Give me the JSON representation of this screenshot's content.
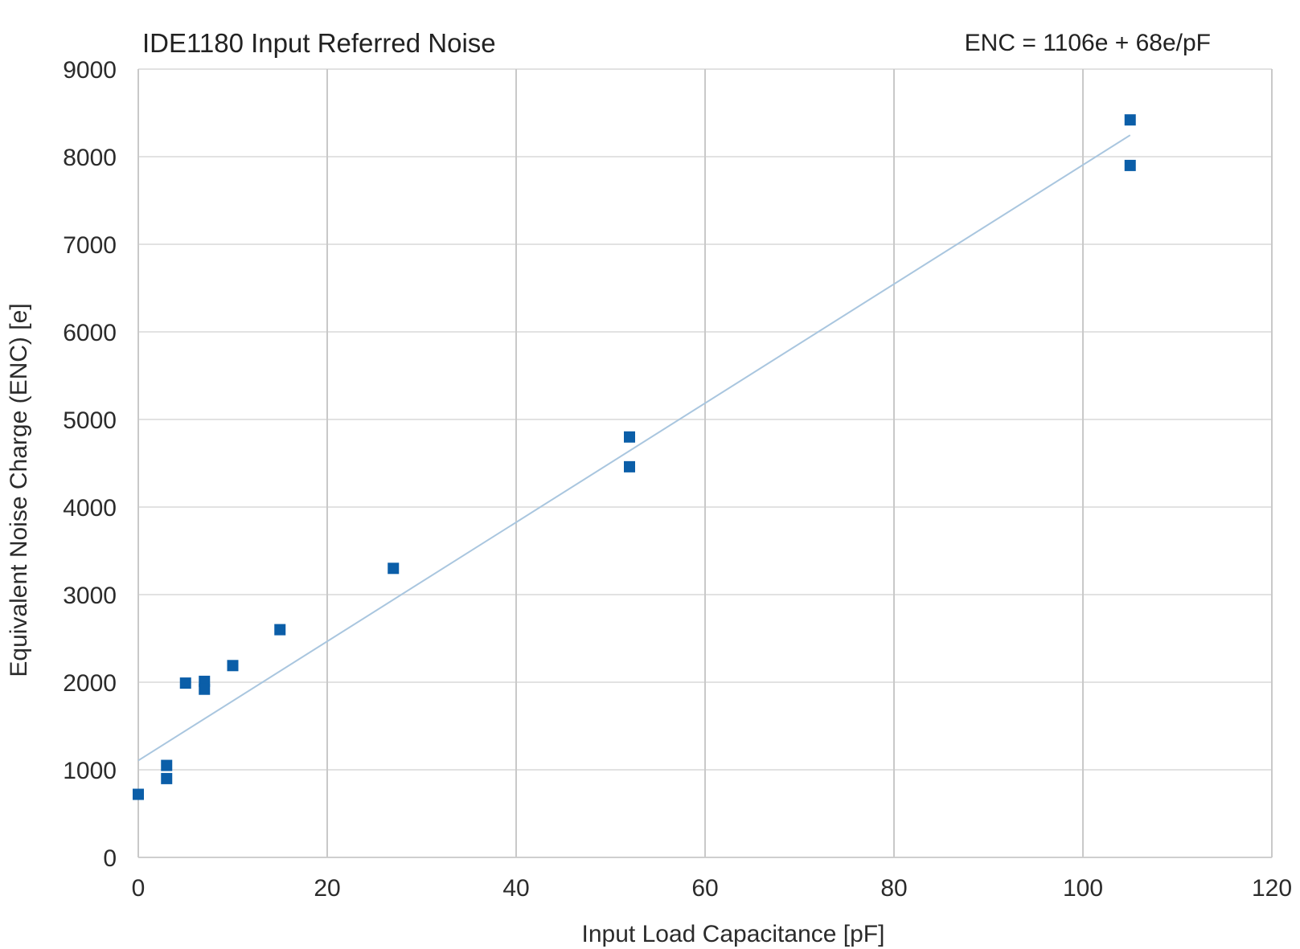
{
  "chart_data": {
    "type": "scatter",
    "title": "IDE1180 Input Referred Noise",
    "annotation": "ENC = 1106e + 68e/pF",
    "xlabel": "Input Load Capacitance [pF]",
    "ylabel": "Equivalent Noise Charge (ENC)  [e]",
    "xlim": [
      0,
      120
    ],
    "ylim": [
      0,
      9000
    ],
    "xticks": [
      0,
      20,
      40,
      60,
      80,
      100,
      120
    ],
    "yticks": [
      0,
      1000,
      2000,
      3000,
      4000,
      5000,
      6000,
      7000,
      8000,
      9000
    ],
    "grid": true,
    "series": [
      {
        "marker": "square",
        "color": "#0b5ea8",
        "points": [
          [
            0,
            720
          ],
          [
            3,
            1050
          ],
          [
            3,
            900
          ],
          [
            5,
            1990
          ],
          [
            7,
            2010
          ],
          [
            7,
            1920
          ],
          [
            10,
            2190
          ],
          [
            15,
            2600
          ],
          [
            27,
            3300
          ],
          [
            52,
            4800
          ],
          [
            52,
            4460
          ],
          [
            105,
            8420
          ],
          [
            105,
            7900
          ]
        ]
      }
    ],
    "trendline": {
      "type": "linear",
      "intercept": 1106,
      "slope": 68,
      "x_range": [
        0,
        105
      ],
      "color": "#a9c6df"
    }
  }
}
